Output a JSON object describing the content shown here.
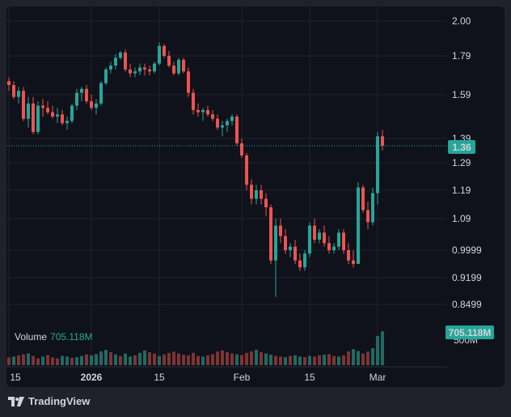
{
  "branding": {
    "name": "TradingView",
    "logo_icon": "tradingview-logo-icon"
  },
  "volume": {
    "label": "Volume",
    "value": "705.118M",
    "badge": "705.118M",
    "axis_label": "500M"
  },
  "price_badge": "1.36",
  "colors": {
    "up": "#26a69a",
    "down": "#ef5350",
    "up_volume": "#1f6b63",
    "down_volume": "#7e3434",
    "background": "#0f121a",
    "grid": "#1e222d",
    "text": "#d1d4dc"
  },
  "chart_data": {
    "type": "candlestick",
    "title": "",
    "xlabel": "",
    "ylabel": "",
    "x_ticks": [
      "15",
      "2026",
      "15",
      "Feb",
      "15",
      "Mar"
    ],
    "y_ticks": [
      "2.00",
      "1.79",
      "1.59",
      "1.39",
      "1.29",
      "1.19",
      "1.09",
      "0.9999",
      "0.9199",
      "0.8499"
    ],
    "ylim": [
      0.8,
      2.05
    ],
    "last_price": 1.36,
    "grid": true,
    "series": [
      {
        "name": "Volume",
        "values": [
          [
            "2025-12-15",
            25,
            "down"
          ],
          [
            "2025-12-16",
            28,
            "up"
          ],
          [
            "2025-12-17",
            32,
            "down"
          ],
          [
            "2025-12-18",
            35,
            "down"
          ],
          [
            "2025-12-19",
            38,
            "up"
          ],
          [
            "2025-12-20",
            30,
            "down"
          ],
          [
            "2025-12-21",
            22,
            "down"
          ],
          [
            "2025-12-22",
            28,
            "up"
          ],
          [
            "2025-12-23",
            33,
            "down"
          ],
          [
            "2025-12-24",
            25,
            "down"
          ],
          [
            "2025-12-25",
            22,
            "down"
          ],
          [
            "2025-12-26",
            30,
            "up"
          ],
          [
            "2025-12-27",
            28,
            "up"
          ],
          [
            "2025-12-28",
            24,
            "down"
          ],
          [
            "2025-12-29",
            26,
            "up"
          ],
          [
            "2025-12-30",
            30,
            "up"
          ],
          [
            "2025-12-31",
            35,
            "down"
          ],
          [
            "2026-01-01",
            32,
            "up"
          ],
          [
            "2026-01-02",
            36,
            "up"
          ],
          [
            "2026-01-03",
            45,
            "up"
          ],
          [
            "2026-01-04",
            50,
            "up"
          ],
          [
            "2026-01-05",
            42,
            "down"
          ],
          [
            "2026-01-06",
            35,
            "up"
          ],
          [
            "2026-01-07",
            30,
            "down"
          ],
          [
            "2026-01-08",
            38,
            "up"
          ],
          [
            "2026-01-09",
            28,
            "up"
          ],
          [
            "2026-01-10",
            32,
            "down"
          ],
          [
            "2026-01-11",
            40,
            "up"
          ],
          [
            "2026-01-12",
            48,
            "up"
          ],
          [
            "2026-01-13",
            42,
            "down"
          ],
          [
            "2026-01-14",
            38,
            "down"
          ],
          [
            "2026-01-15",
            30,
            "up"
          ],
          [
            "2026-01-16",
            35,
            "down"
          ],
          [
            "2026-01-17",
            40,
            "down"
          ],
          [
            "2026-01-18",
            44,
            "down"
          ],
          [
            "2026-01-19",
            38,
            "down"
          ],
          [
            "2026-01-20",
            34,
            "down"
          ],
          [
            "2026-01-21",
            32,
            "down"
          ],
          [
            "2026-01-22",
            40,
            "down"
          ],
          [
            "2026-01-23",
            30,
            "down"
          ],
          [
            "2026-01-24",
            28,
            "up"
          ],
          [
            "2026-01-25",
            32,
            "down"
          ],
          [
            "2026-01-26",
            36,
            "down"
          ],
          [
            "2026-01-27",
            44,
            "down"
          ],
          [
            "2026-01-28",
            48,
            "down"
          ],
          [
            "2026-01-29",
            42,
            "down"
          ],
          [
            "2026-01-30",
            38,
            "down"
          ],
          [
            "2026-01-31",
            35,
            "up"
          ],
          [
            "2026-02-01",
            33,
            "down"
          ],
          [
            "2026-02-02",
            40,
            "down"
          ],
          [
            "2026-02-03",
            45,
            "down"
          ],
          [
            "2026-02-04",
            50,
            "up"
          ],
          [
            "2026-02-05",
            42,
            "down"
          ],
          [
            "2026-02-06",
            38,
            "up"
          ],
          [
            "2026-02-07",
            34,
            "up"
          ],
          [
            "2026-02-08",
            30,
            "down"
          ],
          [
            "2026-02-09",
            28,
            "down"
          ],
          [
            "2026-02-10",
            26,
            "up"
          ],
          [
            "2026-02-11",
            30,
            "down"
          ],
          [
            "2026-02-12",
            32,
            "up"
          ],
          [
            "2026-02-13",
            28,
            "up"
          ],
          [
            "2026-02-14",
            26,
            "down"
          ],
          [
            "2026-02-15",
            30,
            "up"
          ],
          [
            "2026-02-16",
            28,
            "down"
          ],
          [
            "2026-02-17",
            32,
            "down"
          ],
          [
            "2026-02-18",
            34,
            "up"
          ],
          [
            "2026-02-19",
            36,
            "down"
          ],
          [
            "2026-02-20",
            30,
            "down"
          ],
          [
            "2026-02-21",
            28,
            "up"
          ],
          [
            "2026-02-22",
            32,
            "down"
          ],
          [
            "2026-02-23",
            45,
            "down"
          ],
          [
            "2026-02-24",
            52,
            "up"
          ],
          [
            "2026-02-25",
            46,
            "up"
          ],
          [
            "2026-02-26",
            38,
            "down"
          ],
          [
            "2026-02-27",
            44,
            "down"
          ],
          [
            "2026-02-28",
            55,
            "up"
          ],
          [
            "2026-03-01",
            95,
            "up"
          ],
          [
            "2026-03-02",
            110,
            "up"
          ]
        ]
      },
      {
        "name": "Price",
        "ohlc": [
          [
            "2025-12-15",
            1.66,
            1.68,
            1.61,
            1.64
          ],
          [
            "2025-12-16",
            1.64,
            1.66,
            1.57,
            1.58
          ],
          [
            "2025-12-17",
            1.58,
            1.63,
            1.55,
            1.61
          ],
          [
            "2025-12-18",
            1.61,
            1.63,
            1.47,
            1.48
          ],
          [
            "2025-12-19",
            1.48,
            1.58,
            1.44,
            1.55
          ],
          [
            "2025-12-20",
            1.55,
            1.58,
            1.41,
            1.42
          ],
          [
            "2025-12-21",
            1.42,
            1.56,
            1.41,
            1.54
          ],
          [
            "2025-12-22",
            1.54,
            1.57,
            1.49,
            1.53
          ],
          [
            "2025-12-23",
            1.53,
            1.56,
            1.5,
            1.51
          ],
          [
            "2025-12-24",
            1.51,
            1.54,
            1.48,
            1.49
          ],
          [
            "2025-12-25",
            1.49,
            1.53,
            1.46,
            1.5
          ],
          [
            "2025-12-26",
            1.5,
            1.52,
            1.45,
            1.46
          ],
          [
            "2025-12-27",
            1.46,
            1.49,
            1.43,
            1.47
          ],
          [
            "2025-12-28",
            1.47,
            1.55,
            1.46,
            1.54
          ],
          [
            "2025-12-29",
            1.54,
            1.62,
            1.52,
            1.6
          ],
          [
            "2025-12-30",
            1.6,
            1.63,
            1.56,
            1.62
          ],
          [
            "2025-12-31",
            1.62,
            1.64,
            1.55,
            1.56
          ],
          [
            "2026-01-01",
            1.56,
            1.59,
            1.52,
            1.53
          ],
          [
            "2026-01-02",
            1.53,
            1.57,
            1.5,
            1.55
          ],
          [
            "2026-01-03",
            1.55,
            1.66,
            1.54,
            1.65
          ],
          [
            "2026-01-04",
            1.65,
            1.73,
            1.64,
            1.72
          ],
          [
            "2026-01-05",
            1.72,
            1.76,
            1.7,
            1.74
          ],
          [
            "2026-01-06",
            1.74,
            1.8,
            1.72,
            1.78
          ],
          [
            "2026-01-07",
            1.78,
            1.82,
            1.77,
            1.81
          ],
          [
            "2026-01-08",
            1.81,
            1.83,
            1.71,
            1.72
          ],
          [
            "2026-01-09",
            1.72,
            1.75,
            1.68,
            1.7
          ],
          [
            "2026-01-10",
            1.7,
            1.73,
            1.68,
            1.71
          ],
          [
            "2026-01-11",
            1.71,
            1.75,
            1.69,
            1.73
          ],
          [
            "2026-01-12",
            1.73,
            1.75,
            1.69,
            1.72
          ],
          [
            "2026-01-13",
            1.72,
            1.74,
            1.69,
            1.71
          ],
          [
            "2026-01-14",
            1.71,
            1.76,
            1.7,
            1.75
          ],
          [
            "2026-01-15",
            1.75,
            1.87,
            1.74,
            1.85
          ],
          [
            "2026-01-16",
            1.85,
            1.86,
            1.78,
            1.79
          ],
          [
            "2026-01-17",
            1.79,
            1.82,
            1.73,
            1.74
          ],
          [
            "2026-01-18",
            1.74,
            1.76,
            1.69,
            1.7
          ],
          [
            "2026-01-19",
            1.7,
            1.78,
            1.69,
            1.77
          ],
          [
            "2026-01-20",
            1.77,
            1.78,
            1.7,
            1.71
          ],
          [
            "2026-01-21",
            1.71,
            1.73,
            1.58,
            1.6
          ],
          [
            "2026-01-22",
            1.6,
            1.62,
            1.5,
            1.52
          ],
          [
            "2026-01-23",
            1.52,
            1.55,
            1.49,
            1.51
          ],
          [
            "2026-01-24",
            1.51,
            1.53,
            1.47,
            1.52
          ],
          [
            "2026-01-25",
            1.52,
            1.54,
            1.49,
            1.5
          ],
          [
            "2026-01-26",
            1.5,
            1.52,
            1.47,
            1.48
          ],
          [
            "2026-01-27",
            1.48,
            1.5,
            1.43,
            1.44
          ],
          [
            "2026-01-28",
            1.44,
            1.47,
            1.4,
            1.45
          ],
          [
            "2026-01-29",
            1.45,
            1.48,
            1.42,
            1.47
          ],
          [
            "2026-01-30",
            1.47,
            1.5,
            1.45,
            1.49
          ],
          [
            "2026-01-31",
            1.49,
            1.5,
            1.36,
            1.37
          ],
          [
            "2026-02-01",
            1.37,
            1.39,
            1.31,
            1.32
          ],
          [
            "2026-02-02",
            1.32,
            1.33,
            1.19,
            1.21
          ],
          [
            "2026-02-03",
            1.21,
            1.23,
            1.14,
            1.16
          ],
          [
            "2026-02-04",
            1.16,
            1.21,
            1.14,
            1.19
          ],
          [
            "2026-02-05",
            1.19,
            1.21,
            1.14,
            1.16
          ],
          [
            "2026-02-06",
            1.16,
            1.18,
            1.1,
            1.13
          ],
          [
            "2026-02-07",
            1.13,
            1.14,
            0.96,
            0.97
          ],
          [
            "2026-02-08",
            0.97,
            1.09,
            0.87,
            1.07
          ],
          [
            "2026-02-09",
            1.07,
            1.09,
            1.02,
            1.04
          ],
          [
            "2026-02-10",
            1.04,
            1.06,
            0.99,
            1.0
          ],
          [
            "2026-02-11",
            1.0,
            1.02,
            0.98,
            1.01
          ],
          [
            "2026-02-12",
            1.01,
            1.03,
            0.96,
            0.97
          ],
          [
            "2026-02-13",
            0.97,
            0.99,
            0.94,
            0.95
          ],
          [
            "2026-02-14",
            0.95,
            1.0,
            0.94,
            0.99
          ],
          [
            "2026-02-15",
            0.99,
            1.08,
            0.98,
            1.07
          ],
          [
            "2026-02-16",
            1.07,
            1.09,
            1.02,
            1.03
          ],
          [
            "2026-02-17",
            1.03,
            1.06,
            1.02,
            1.05
          ],
          [
            "2026-02-18",
            1.05,
            1.07,
            1.01,
            1.02
          ],
          [
            "2026-02-19",
            1.02,
            1.04,
            0.99,
            1.0
          ],
          [
            "2026-02-20",
            1.0,
            1.02,
            0.99,
            1.01
          ],
          [
            "2026-02-21",
            1.01,
            1.06,
            1.0,
            1.05
          ],
          [
            "2026-02-22",
            1.05,
            1.06,
            0.99,
            1.0
          ],
          [
            "2026-02-23",
            1.0,
            1.02,
            0.96,
            0.97
          ],
          [
            "2026-02-24",
            0.97,
            1.0,
            0.95,
            0.96
          ],
          [
            "2026-02-25",
            0.96,
            1.22,
            0.96,
            1.2
          ],
          [
            "2026-02-26",
            1.2,
            1.21,
            1.11,
            1.12
          ],
          [
            "2026-02-27",
            1.12,
            1.15,
            1.06,
            1.08
          ],
          [
            "2026-02-28",
            1.08,
            1.2,
            1.07,
            1.18
          ],
          [
            "2026-03-01",
            1.18,
            1.42,
            1.14,
            1.4
          ],
          [
            "2026-03-02",
            1.4,
            1.43,
            1.34,
            1.36
          ]
        ]
      }
    ]
  }
}
